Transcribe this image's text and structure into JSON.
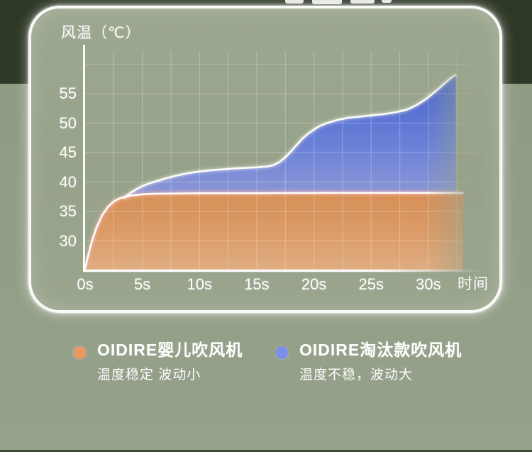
{
  "colors": {
    "page_background": "#919E86",
    "top_strip": "#2E3826",
    "card_background": "#99A48C",
    "card_border": "#FFFFFF",
    "text": "#FFFFFF",
    "grid_line": "rgba(255,255,255,0.22)",
    "series_baby_orange": "#E8975F",
    "series_old_blue": "#7B8EE8"
  },
  "chart": {
    "y_axis_title": "风温（℃）",
    "x_axis_title": "时间",
    "y_ticks": [
      "30",
      "35",
      "40",
      "45",
      "50",
      "55"
    ],
    "x_ticks": [
      "0s",
      "5s",
      "10s",
      "15s",
      "20s",
      "25s",
      "30s"
    ]
  },
  "chart_data": {
    "type": "area",
    "xlabel": "时间",
    "ylabel": "风温（℃）",
    "x_unit": "s",
    "y_unit": "°C",
    "x_range": [
      0,
      35
    ],
    "y_range": [
      25,
      60
    ],
    "x_tick_values": [
      0,
      5,
      10,
      15,
      20,
      25,
      30
    ],
    "y_tick_values": [
      30,
      35,
      40,
      45,
      50,
      55
    ],
    "grid": true,
    "legend_position": "bottom",
    "series": [
      {
        "name": "OIDIRE婴儿吹风机",
        "description": "温度稳定 波动小",
        "color": "#E8975F",
        "points": [
          [
            0,
            25.3
          ],
          [
            0.3,
            27.8
          ],
          [
            0.6,
            30.0
          ],
          [
            1,
            32.3
          ],
          [
            1.5,
            34.4
          ],
          [
            2,
            35.8
          ],
          [
            2.5,
            36.7
          ],
          [
            3,
            37.2
          ],
          [
            3.5,
            37.5
          ],
          [
            4,
            37.7
          ],
          [
            5,
            37.9
          ],
          [
            6,
            38.0
          ],
          [
            8,
            38.05
          ],
          [
            10,
            38.1
          ],
          [
            12,
            38.1
          ],
          [
            15,
            38.1
          ],
          [
            18,
            38.12
          ],
          [
            21,
            38.15
          ],
          [
            24,
            38.15
          ],
          [
            27,
            38.15
          ],
          [
            30,
            38.15
          ],
          [
            33,
            38.15
          ]
        ]
      },
      {
        "name": "OIDIRE淘汰款吹风机",
        "description": "温度不稳，波动大",
        "color": "#7B8EE8",
        "points": [
          [
            3.4,
            37.3
          ],
          [
            4,
            38.2
          ],
          [
            4.5,
            38.8
          ],
          [
            5,
            39.3
          ],
          [
            5.5,
            39.7
          ],
          [
            6,
            40.0
          ],
          [
            7,
            40.6
          ],
          [
            8,
            41.1
          ],
          [
            9,
            41.5
          ],
          [
            10,
            41.8
          ],
          [
            11,
            42.0
          ],
          [
            12,
            42.15
          ],
          [
            13,
            42.3
          ],
          [
            14,
            42.4
          ],
          [
            15,
            42.5
          ],
          [
            16,
            42.65
          ],
          [
            16.5,
            42.9
          ],
          [
            17,
            43.4
          ],
          [
            17.5,
            44.2
          ],
          [
            18,
            45.2
          ],
          [
            18.5,
            46.3
          ],
          [
            19,
            47.4
          ],
          [
            19.5,
            48.2
          ],
          [
            20,
            48.9
          ],
          [
            20.5,
            49.5
          ],
          [
            21,
            49.9
          ],
          [
            21.5,
            50.2
          ],
          [
            22,
            50.5
          ],
          [
            23,
            50.9
          ],
          [
            24,
            51.1
          ],
          [
            25,
            51.3
          ],
          [
            26,
            51.5
          ],
          [
            27,
            51.8
          ],
          [
            28,
            52.2
          ],
          [
            28.5,
            52.6
          ],
          [
            29,
            53.1
          ],
          [
            29.5,
            53.7
          ],
          [
            30,
            54.4
          ],
          [
            30.5,
            55.2
          ],
          [
            31,
            56.0
          ],
          [
            31.5,
            56.9
          ],
          [
            32,
            57.7
          ],
          [
            32.4,
            58.2
          ]
        ]
      }
    ]
  },
  "legend": {
    "items": [
      {
        "title": "OIDIRE婴儿吹风机",
        "subtitle": "温度稳定 波动小",
        "color": "#E8975F"
      },
      {
        "title": "OIDIRE淘汰款吹风机",
        "subtitle": "温度不稳，波动大",
        "color": "#7B8EE8"
      }
    ]
  }
}
